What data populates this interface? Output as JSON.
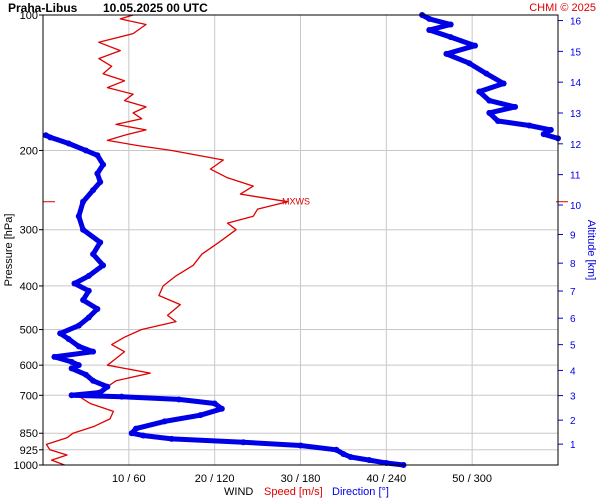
{
  "header": {
    "station": "Praha-Libus",
    "datetime": "10.05.2025 00 UTC",
    "credit": "CHMI © 2025"
  },
  "axes": {
    "ylabel_left": "Pressure [hPa]",
    "ylabel_right": "Altitude [km]",
    "xlabel_prefix": "WIND",
    "xlabel_speed": "Speed [m/s]",
    "xlabel_direction": "Direction [°]"
  },
  "annotation": {
    "mxws": "MXWS"
  },
  "colors": {
    "speed": "#e00000",
    "direction": "#0000e6",
    "grid": "#c8c8c8",
    "text": "#000000"
  },
  "chart_data": {
    "type": "line",
    "title": "Praha-Libus 10.05.2025 00 UTC",
    "pressure_scale": "log",
    "ylim_hpa": [
      1000,
      100
    ],
    "pressure_ticks": [
      100,
      200,
      300,
      400,
      500,
      600,
      700,
      850,
      925,
      1000
    ],
    "altitude_ticks_km": [
      1,
      2,
      3,
      4,
      5,
      6,
      7,
      8,
      9,
      10,
      11,
      12,
      13,
      14,
      15,
      16
    ],
    "x_ticks": [
      {
        "label": "10 / 60",
        "speed": 10
      },
      {
        "label": "20 / 120",
        "speed": 20
      },
      {
        "label": "30 / 180",
        "speed": 30
      },
      {
        "label": "40 / 240",
        "speed": 40
      },
      {
        "label": "50 / 300",
        "speed": 50
      }
    ],
    "xlim_speed": [
      0,
      60
    ],
    "xlim_direction": [
      0,
      360
    ],
    "max_wind_pressure_hpa": 260,
    "series": [
      {
        "name": "Speed [m/s]",
        "unit": "m/s",
        "points": [
          {
            "p": 1000,
            "v": 2.5
          },
          {
            "p": 975,
            "v": 1.0
          },
          {
            "p": 950,
            "v": 2.8
          },
          {
            "p": 925,
            "v": 0.8
          },
          {
            "p": 900,
            "v": 0.4
          },
          {
            "p": 870,
            "v": 2.8
          },
          {
            "p": 850,
            "v": 3.5
          },
          {
            "p": 820,
            "v": 6.0
          },
          {
            "p": 790,
            "v": 7.8
          },
          {
            "p": 760,
            "v": 8.2
          },
          {
            "p": 730,
            "v": 5.5
          },
          {
            "p": 700,
            "v": 4.0
          },
          {
            "p": 680,
            "v": 7.0
          },
          {
            "p": 650,
            "v": 8.5
          },
          {
            "p": 625,
            "v": 12.5
          },
          {
            "p": 600,
            "v": 7.5
          },
          {
            "p": 580,
            "v": 8.5
          },
          {
            "p": 560,
            "v": 9.5
          },
          {
            "p": 540,
            "v": 8.0
          },
          {
            "p": 520,
            "v": 9.5
          },
          {
            "p": 500,
            "v": 11.5
          },
          {
            "p": 480,
            "v": 15.5
          },
          {
            "p": 465,
            "v": 14.5
          },
          {
            "p": 440,
            "v": 16.0
          },
          {
            "p": 420,
            "v": 13.5
          },
          {
            "p": 400,
            "v": 14.0
          },
          {
            "p": 380,
            "v": 15.5
          },
          {
            "p": 360,
            "v": 17.5
          },
          {
            "p": 340,
            "v": 18.5
          },
          {
            "p": 320,
            "v": 20.5
          },
          {
            "p": 300,
            "v": 22.5
          },
          {
            "p": 290,
            "v": 21.5
          },
          {
            "p": 280,
            "v": 24.5
          },
          {
            "p": 270,
            "v": 25.0
          },
          {
            "p": 260,
            "v": 28.5
          },
          {
            "p": 250,
            "v": 23.0
          },
          {
            "p": 240,
            "v": 24.5
          },
          {
            "p": 230,
            "v": 21.5
          },
          {
            "p": 220,
            "v": 19.5
          },
          {
            "p": 210,
            "v": 21.0
          },
          {
            "p": 200,
            "v": 15.0
          },
          {
            "p": 195,
            "v": 11.0
          },
          {
            "p": 190,
            "v": 7.5
          },
          {
            "p": 185,
            "v": 9.5
          },
          {
            "p": 180,
            "v": 12.0
          },
          {
            "p": 175,
            "v": 8.5
          },
          {
            "p": 170,
            "v": 11.5
          },
          {
            "p": 165,
            "v": 10.5
          },
          {
            "p": 160,
            "v": 12.0
          },
          {
            "p": 155,
            "v": 9.5
          },
          {
            "p": 150,
            "v": 10.5
          },
          {
            "p": 145,
            "v": 7.5
          },
          {
            "p": 140,
            "v": 9.5
          },
          {
            "p": 135,
            "v": 7.0
          },
          {
            "p": 130,
            "v": 8.0
          },
          {
            "p": 125,
            "v": 6.5
          },
          {
            "p": 120,
            "v": 9.0
          },
          {
            "p": 115,
            "v": 6.5
          },
          {
            "p": 110,
            "v": 10.5
          },
          {
            "p": 105,
            "v": 12.0
          },
          {
            "p": 102,
            "v": 9.0
          },
          {
            "p": 100,
            "v": 10.5
          }
        ]
      },
      {
        "name": "Direction [°]",
        "unit": "deg",
        "points": [
          {
            "p": 1000,
            "v": 252
          },
          {
            "p": 990,
            "v": 240
          },
          {
            "p": 975,
            "v": 228
          },
          {
            "p": 960,
            "v": 215
          },
          {
            "p": 945,
            "v": 210
          },
          {
            "p": 925,
            "v": 205
          },
          {
            "p": 905,
            "v": 180
          },
          {
            "p": 890,
            "v": 140
          },
          {
            "p": 875,
            "v": 90
          },
          {
            "p": 860,
            "v": 70
          },
          {
            "p": 850,
            "v": 62
          },
          {
            "p": 830,
            "v": 65
          },
          {
            "p": 800,
            "v": 85
          },
          {
            "p": 775,
            "v": 110
          },
          {
            "p": 750,
            "v": 125
          },
          {
            "p": 730,
            "v": 120
          },
          {
            "p": 715,
            "v": 95
          },
          {
            "p": 705,
            "v": 55
          },
          {
            "p": 700,
            "v": 20
          },
          {
            "p": 690,
            "v": 40
          },
          {
            "p": 670,
            "v": 45
          },
          {
            "p": 650,
            "v": 35
          },
          {
            "p": 630,
            "v": 30
          },
          {
            "p": 610,
            "v": 20
          },
          {
            "p": 600,
            "v": 25
          },
          {
            "p": 590,
            "v": 20
          },
          {
            "p": 575,
            "v": 8
          },
          {
            "p": 560,
            "v": 35
          },
          {
            "p": 545,
            "v": 25
          },
          {
            "p": 525,
            "v": 18
          },
          {
            "p": 510,
            "v": 12
          },
          {
            "p": 490,
            "v": 25
          },
          {
            "p": 470,
            "v": 32
          },
          {
            "p": 450,
            "v": 38
          },
          {
            "p": 430,
            "v": 28
          },
          {
            "p": 410,
            "v": 32
          },
          {
            "p": 395,
            "v": 22
          },
          {
            "p": 380,
            "v": 32
          },
          {
            "p": 360,
            "v": 42
          },
          {
            "p": 340,
            "v": 35
          },
          {
            "p": 320,
            "v": 40
          },
          {
            "p": 300,
            "v": 28
          },
          {
            "p": 280,
            "v": 25
          },
          {
            "p": 260,
            "v": 28
          },
          {
            "p": 245,
            "v": 35
          },
          {
            "p": 235,
            "v": 40
          },
          {
            "p": 225,
            "v": 38
          },
          {
            "p": 215,
            "v": 42
          },
          {
            "p": 205,
            "v": 38
          },
          {
            "p": 200,
            "v": 30
          },
          {
            "p": 193,
            "v": 18
          },
          {
            "p": 187,
            "v": 5
          },
          {
            "p": 185,
            "v": 2
          }
        ]
      },
      {
        "name": "Direction [°] (upper)",
        "unit": "deg",
        "points": [
          {
            "p": 188,
            "v": 360
          },
          {
            "p": 184,
            "v": 350
          },
          {
            "p": 180,
            "v": 355
          },
          {
            "p": 176,
            "v": 340
          },
          {
            "p": 172,
            "v": 318
          },
          {
            "p": 165,
            "v": 312
          },
          {
            "p": 160,
            "v": 330
          },
          {
            "p": 155,
            "v": 312
          },
          {
            "p": 148,
            "v": 305
          },
          {
            "p": 142,
            "v": 322
          },
          {
            "p": 135,
            "v": 310
          },
          {
            "p": 128,
            "v": 298
          },
          {
            "p": 122,
            "v": 282
          },
          {
            "p": 117,
            "v": 302
          },
          {
            "p": 112,
            "v": 285
          },
          {
            "p": 108,
            "v": 270
          },
          {
            "p": 105,
            "v": 285
          },
          {
            "p": 102,
            "v": 270
          },
          {
            "p": 100,
            "v": 265
          }
        ]
      }
    ]
  }
}
